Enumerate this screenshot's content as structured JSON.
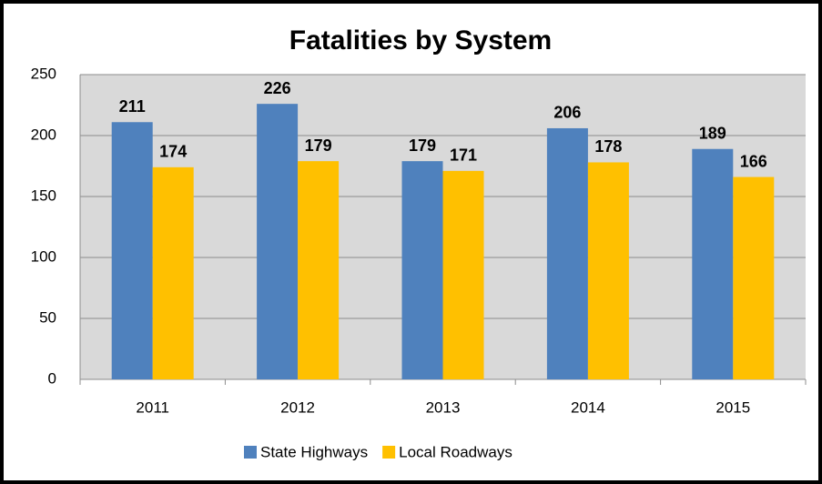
{
  "chart_data": {
    "type": "bar",
    "title": "Fatalities by System",
    "categories": [
      "2011",
      "2012",
      "2013",
      "2014",
      "2015"
    ],
    "series": [
      {
        "name": "State Highways",
        "color": "#4f81bd",
        "values": [
          211,
          226,
          179,
          206,
          189
        ]
      },
      {
        "name": "Local Roadways",
        "color": "#ffc000",
        "values": [
          174,
          179,
          171,
          178,
          166
        ]
      }
    ],
    "ylim": [
      0,
      250
    ],
    "yticks": [
      0,
      50,
      100,
      150,
      200,
      250
    ],
    "grid": true,
    "legend": "bottom"
  }
}
